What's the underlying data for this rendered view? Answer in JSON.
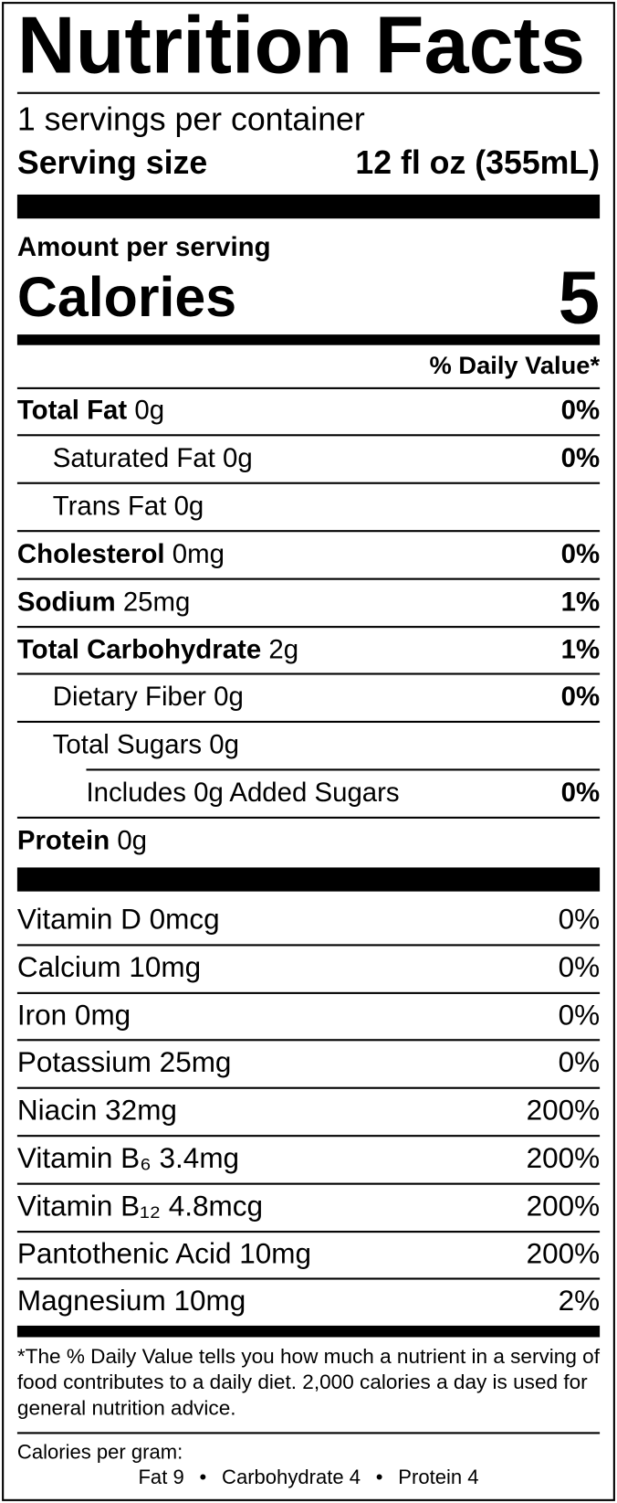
{
  "header": {
    "title": "Nutrition Facts",
    "servings": "1 servings per container",
    "serving_size_label": "Serving size",
    "serving_size_value": "12 fl oz (355mL)"
  },
  "calories": {
    "amount_label": "Amount per serving",
    "label": "Calories",
    "value": 5
  },
  "daily_value_header": "% Daily Value*",
  "nutrients": [
    {
      "name": "Total Fat",
      "amount": "0g",
      "dv": "0%",
      "bold": true,
      "indent": 0
    },
    {
      "name": "Saturated Fat",
      "amount": "0g",
      "dv": "0%",
      "bold": false,
      "indent": 1
    },
    {
      "name": "Trans Fat",
      "amount": "0g",
      "bold": false,
      "indent": 1
    },
    {
      "name": "Cholesterol",
      "amount": "0mg",
      "dv": "0%",
      "bold": true,
      "indent": 0
    },
    {
      "name": "Sodium",
      "amount": "25mg",
      "dv": "1%",
      "bold": true,
      "indent": 0
    },
    {
      "name": "Total Carbohydrate",
      "amount": "2g",
      "dv": "1%",
      "bold": true,
      "indent": 0
    },
    {
      "name": "Dietary Fiber",
      "amount": "0g",
      "dv": "0%",
      "bold": false,
      "indent": 1
    },
    {
      "name": "Total Sugars",
      "amount": "0g",
      "bold": false,
      "indent": 1
    },
    {
      "name": "Includes 0g Added Sugars",
      "dv": "0%",
      "bold": false,
      "indent": 2
    },
    {
      "name": "Protein",
      "amount": "0g",
      "bold": true,
      "indent": 0
    }
  ],
  "vitamins": [
    {
      "name": "Vitamin D",
      "amount": "0mcg",
      "dv": "0%"
    },
    {
      "name": "Calcium",
      "amount": "10mg",
      "dv": "0%"
    },
    {
      "name": "Iron",
      "amount": "0mg",
      "dv": "0%"
    },
    {
      "name": "Potassium",
      "amount": "25mg",
      "dv": "0%"
    },
    {
      "name": "Niacin",
      "amount": "32mg",
      "dv": "200%"
    },
    {
      "name": "Vitamin B₆",
      "amount": "3.4mg",
      "dv": "200%"
    },
    {
      "name": "Vitamin B₁₂",
      "amount": "4.8mcg",
      "dv": "200%"
    },
    {
      "name": "Pantothenic Acid",
      "amount": "10mg",
      "dv": "200%"
    },
    {
      "name": "Magnesium",
      "amount": "10mg",
      "dv": "2%"
    }
  ],
  "footnote": "*The % Daily Value tells you how much a nutrient in a serving of food contributes to a daily diet. 2,000 calories a day is used for general nutrition advice.",
  "calories_per_gram": {
    "label": "Calories per gram:",
    "items": [
      "Fat 9",
      "Carbohydrate 4",
      "Protein 4"
    ]
  }
}
